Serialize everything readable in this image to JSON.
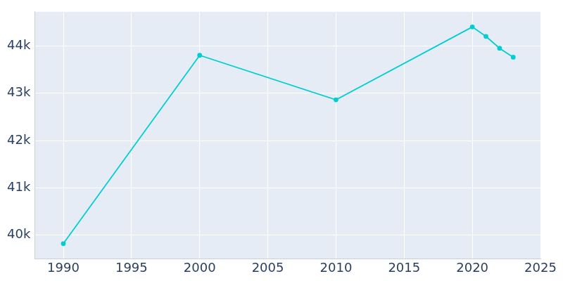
{
  "chart_data": {
    "type": "line",
    "x": [
      1990,
      2000,
      2010,
      2020,
      2021,
      2022,
      2023
    ],
    "values": [
      39820,
      43800,
      42860,
      44400,
      44200,
      43950,
      43760
    ],
    "color": "#00ced1",
    "marker": "circle",
    "xlim": [
      1987.9,
      2025
    ],
    "ylim": [
      39500,
      44720
    ],
    "xticks": [
      1990,
      1995,
      2000,
      2005,
      2010,
      2015,
      2020,
      2025
    ],
    "yticks": [
      {
        "value": 40000,
        "label": "40k"
      },
      {
        "value": 41000,
        "label": "41k"
      },
      {
        "value": 42000,
        "label": "42k"
      },
      {
        "value": 43000,
        "label": "43k"
      },
      {
        "value": 44000,
        "label": "44k"
      }
    ],
    "grid": true
  }
}
